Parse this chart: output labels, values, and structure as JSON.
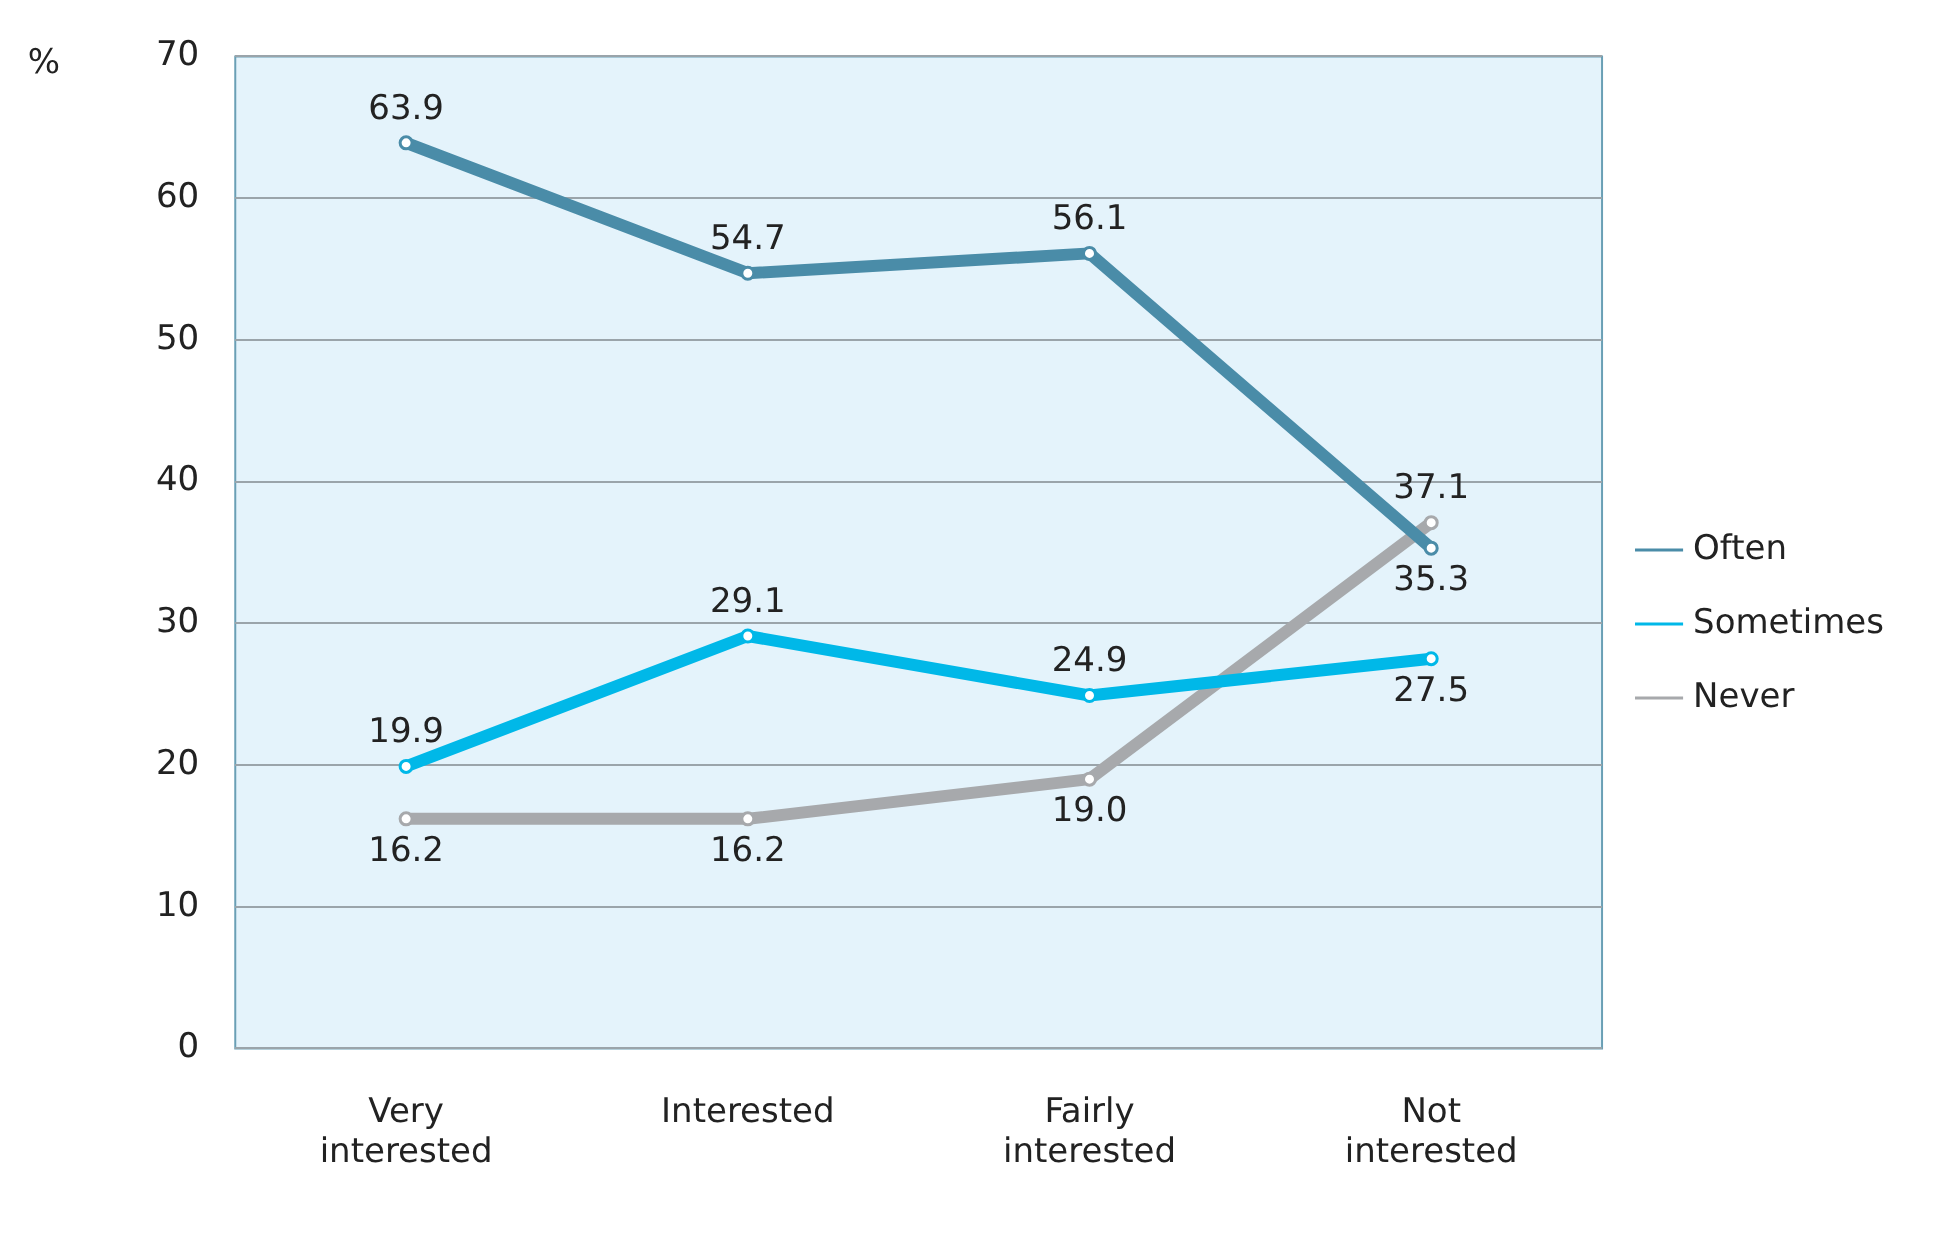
{
  "chart_data": {
    "type": "line",
    "ylabel": "%",
    "categories": [
      "Very\ninterested",
      "Interested",
      "Fairly\ninterested",
      "Not\ninterested"
    ],
    "series": [
      {
        "name": "Often",
        "color": "#4a8ca8",
        "values": [
          63.9,
          54.7,
          56.1,
          35.3
        ],
        "value_labels": [
          "63.9",
          "54.7",
          "56.1",
          "35.3"
        ]
      },
      {
        "name": "Sometimes",
        "color": "#00b8e8",
        "values": [
          19.9,
          29.1,
          24.9,
          27.5
        ],
        "value_labels": [
          "19.9",
          "29.1",
          "24.9",
          "27.5"
        ]
      },
      {
        "name": "Never",
        "color": "#a7a9ac",
        "values": [
          16.2,
          16.2,
          19.0,
          37.1
        ],
        "value_labels": [
          "16.2",
          "16.2",
          "19.0",
          "37.1"
        ]
      }
    ],
    "ylim": [
      0,
      70
    ],
    "yticks": [
      0,
      10,
      20,
      30,
      40,
      50,
      60,
      70
    ],
    "grid": "y",
    "legend": "right",
    "marker": "circle",
    "line_style": "solid"
  }
}
